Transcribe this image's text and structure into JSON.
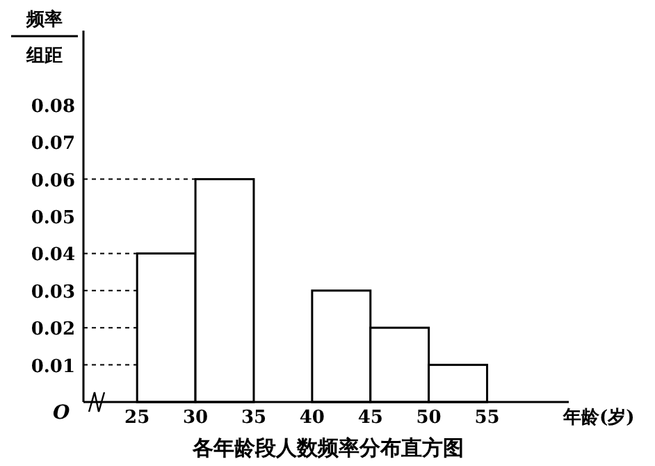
{
  "chart_data": {
    "type": "histogram",
    "title": "各年龄段人数频率分布直方图",
    "xlabel": "年龄(岁)",
    "bins": [
      25,
      30,
      35,
      40,
      45,
      50,
      55
    ],
    "values": [
      0.04,
      0.06,
      0,
      0.03,
      0.02,
      0.01
    ],
    "color": "#ffffff",
    "xlim": [
      20.4,
      62
    ],
    "xticks": [
      25,
      30,
      35,
      40,
      45,
      50,
      55
    ],
    "ylim": [
      0,
      0.1
    ],
    "yticks": [
      0.01,
      0.02,
      0.03,
      0.04,
      0.05,
      0.06,
      0.07,
      0.08
    ],
    "ref_lines": [
      {
        "axis": "y",
        "value": 0.01,
        "line_style": "dashed"
      },
      {
        "axis": "y",
        "value": 0.02,
        "line_style": "dashed"
      },
      {
        "axis": "y",
        "value": 0.03,
        "line_style": "dashed"
      },
      {
        "axis": "y",
        "value": 0.04,
        "line_style": "dashed"
      },
      {
        "axis": "y",
        "value": 0.06,
        "line_style": "dashed"
      }
    ],
    "annotations": [
      "O",
      "频率",
      "组距"
    ]
  }
}
